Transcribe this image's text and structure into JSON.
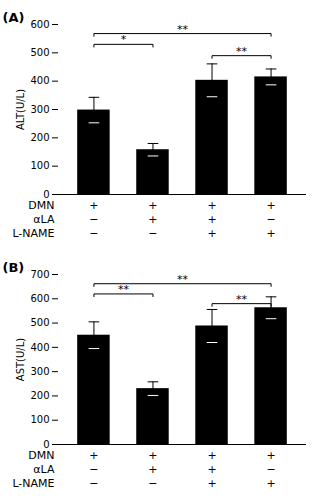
{
  "chart_data": [
    {
      "type": "bar",
      "title": "(A)",
      "ylabel": "ALT(U/L)",
      "categories": [
        null,
        null,
        null,
        null
      ],
      "values": [
        298,
        158,
        403,
        415
      ],
      "errors": [
        45,
        22,
        58,
        28
      ],
      "color": "#000000",
      "ylim": [
        0,
        600
      ],
      "yticks": [
        0,
        100,
        200,
        300,
        400,
        500,
        600
      ],
      "grid": false,
      "tick_labels": "y",
      "table": [
        {
          "label": "DMN",
          "values": [
            "+",
            "+",
            "+",
            "+"
          ]
        },
        {
          "label": "αLA",
          "values": [
            "−",
            "+",
            "+",
            "−"
          ]
        },
        {
          "label": "L-NAME",
          "values": [
            "−",
            "−",
            "+",
            "+"
          ]
        }
      ],
      "annotations": [
        {
          "text": "*",
          "y": 530,
          "bars": [
            1,
            2
          ]
        },
        {
          "text": "**",
          "y": 490,
          "bars": [
            3,
            4
          ]
        },
        {
          "text": "**",
          "y": 568,
          "bars": [
            1,
            4
          ]
        }
      ]
    },
    {
      "type": "bar",
      "title": "(B)",
      "ylabel": "AST(U/L)",
      "categories": [
        null,
        null,
        null,
        null
      ],
      "values": [
        450,
        230,
        488,
        563
      ],
      "errors": [
        55,
        28,
        68,
        45
      ],
      "color": "#000000",
      "ylim": [
        0,
        700
      ],
      "yticks": [
        0,
        100,
        200,
        300,
        400,
        500,
        600,
        700
      ],
      "grid": false,
      "tick_labels": "y",
      "table": [
        {
          "label": "DMN",
          "values": [
            "+",
            "+",
            "+",
            "+"
          ]
        },
        {
          "label": "αLA",
          "values": [
            "−",
            "+",
            "+",
            "−"
          ]
        },
        {
          "label": "L-NAME",
          "values": [
            "−",
            "−",
            "+",
            "+"
          ]
        }
      ],
      "annotations": [
        {
          "text": "**",
          "y": 620,
          "bars": [
            1,
            2
          ]
        },
        {
          "text": "**",
          "y": 580,
          "bars": [
            3,
            4
          ]
        },
        {
          "text": "**",
          "y": 662,
          "bars": [
            1,
            4
          ]
        }
      ]
    }
  ]
}
